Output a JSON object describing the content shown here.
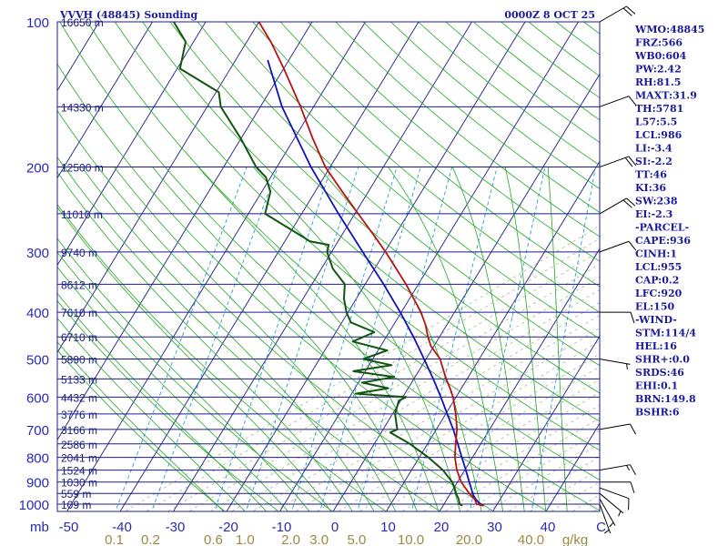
{
  "header": {
    "station": "VVVH (48845) Sounding",
    "time": "0000Z  8 OCT 25"
  },
  "indices": [
    "WMO:48845",
    "FRZ:566",
    "WB0:604",
    "PW:2.42",
    "RH:81.5",
    "MAXT:31.9",
    "TH:5781",
    "L57:5.5",
    "LCL:986",
    "LI:-3.4",
    "SI:-2.2",
    "TT:46",
    "KI:36",
    "SW:238",
    "EI:-2.3",
    "-PARCEL-",
    "CAPE:936",
    "CINH:1",
    "LCL:955",
    "CAP:0.2",
    "LFC:920",
    "EL:150",
    "-WIND-",
    "STM:114/4",
    "HEL:16",
    "SHR+:0.0",
    "SRDS:46",
    "EHI:0.1",
    "BRN:149.8",
    "BSHR:6"
  ],
  "colors": {
    "frame": "#1c1c8c",
    "isobar": "#1c1c8c",
    "isotherm": "#1c1c8c",
    "dry_adiabat": "#22aa22",
    "moist_adiabat": "#22aa22",
    "mixing_ratio": "#22a0d0",
    "temperature": "#bb1111",
    "dewpoint": "#115511",
    "parcel": "#1111bb",
    "wind": "#000000",
    "hatch": "#9a9a70"
  },
  "chart_data": {
    "type": "skew-t",
    "x_unit": "°C",
    "y_unit": "mb",
    "pressure_ticks": [
      {
        "p": 100,
        "label": "100"
      },
      {
        "p": 200,
        "label": "200"
      },
      {
        "p": 300,
        "label": "300"
      },
      {
        "p": 400,
        "label": "400"
      },
      {
        "p": 500,
        "label": "500"
      },
      {
        "p": 600,
        "label": "600"
      },
      {
        "p": 700,
        "label": "700"
      },
      {
        "p": 800,
        "label": "800"
      },
      {
        "p": 900,
        "label": "900"
      },
      {
        "p": 1000,
        "label": "1000"
      }
    ],
    "pressure_unit_label": "mb",
    "temperature_ticks": [
      {
        "t": -50,
        "label": "-50"
      },
      {
        "t": -40,
        "label": "-40"
      },
      {
        "t": -30,
        "label": "-30"
      },
      {
        "t": -20,
        "label": "-20"
      },
      {
        "t": -10,
        "label": "-10"
      },
      {
        "t": 0,
        "label": "0"
      },
      {
        "t": 10,
        "label": "10"
      },
      {
        "t": 20,
        "label": "20"
      },
      {
        "t": 30,
        "label": "30"
      },
      {
        "t": 40,
        "label": "40"
      },
      {
        "t": 50,
        "label": "C"
      }
    ],
    "mixing_ratio_ticks": [
      {
        "w": 0.1,
        "label": "0.1"
      },
      {
        "w": 0.2,
        "label": "0.2"
      },
      {
        "w": 0.6,
        "label": "0.6"
      },
      {
        "w": 1.0,
        "label": "1.0"
      },
      {
        "w": 2.0,
        "label": "2.0"
      },
      {
        "w": 3.0,
        "label": "3.0"
      },
      {
        "w": 5.0,
        "label": "5.0"
      },
      {
        "w": 10.0,
        "label": "10.0"
      },
      {
        "w": 20.0,
        "label": "20.0"
      },
      {
        "w": 40.0,
        "label": "40.0"
      }
    ],
    "mixing_ratio_unit_label": "g/kg",
    "height_levels": [
      {
        "p": 100,
        "label": "16650 m"
      },
      {
        "p": 150,
        "label": "14330 m"
      },
      {
        "p": 200,
        "label": "12500 m"
      },
      {
        "p": 250,
        "label": "11010 m"
      },
      {
        "p": 300,
        "label": "9740 m"
      },
      {
        "p": 350,
        "label": "8612 m"
      },
      {
        "p": 400,
        "label": "7610 m"
      },
      {
        "p": 450,
        "label": "6710 m"
      },
      {
        "p": 500,
        "label": "5890 m"
      },
      {
        "p": 550,
        "label": "5133 m"
      },
      {
        "p": 600,
        "label": "4432 m"
      },
      {
        "p": 650,
        "label": "3776 m"
      },
      {
        "p": 700,
        "label": "3166 m"
      },
      {
        "p": 750,
        "label": "2586 m"
      },
      {
        "p": 800,
        "label": "2041 m"
      },
      {
        "p": 850,
        "label": "1524 m"
      },
      {
        "p": 900,
        "label": "1030 m"
      },
      {
        "p": 950,
        "label": "559 m"
      },
      {
        "p": 1000,
        "label": "109 m"
      }
    ],
    "temperature_profile": [
      [
        1008,
        27.3
      ],
      [
        1000,
        25.8
      ],
      [
        975,
        24.8
      ],
      [
        950,
        23.2
      ],
      [
        925,
        21.8
      ],
      [
        900,
        20.4
      ],
      [
        850,
        18.2
      ],
      [
        800,
        16.4
      ],
      [
        750,
        15.0
      ],
      [
        700,
        13.6
      ],
      [
        650,
        11.6
      ],
      [
        600,
        9.2
      ],
      [
        575,
        7.6
      ],
      [
        550,
        5.8
      ],
      [
        500,
        2.4
      ],
      [
        470,
        -0.8
      ],
      [
        450,
        -2.4
      ],
      [
        425,
        -4.2
      ],
      [
        400,
        -6.5
      ],
      [
        350,
        -12.5
      ],
      [
        300,
        -20.0
      ],
      [
        275,
        -24.5
      ],
      [
        250,
        -29.5
      ],
      [
        225,
        -35.0
      ],
      [
        200,
        -41.0
      ],
      [
        175,
        -46.5
      ],
      [
        150,
        -52.5
      ],
      [
        125,
        -60.0
      ],
      [
        110,
        -65.5
      ],
      [
        100,
        -70.0
      ]
    ],
    "dewpoint_profile": [
      [
        1008,
        23.3
      ],
      [
        1000,
        22.6
      ],
      [
        975,
        21.8
      ],
      [
        950,
        20.7
      ],
      [
        925,
        19.8
      ],
      [
        900,
        18.7
      ],
      [
        850,
        15.6
      ],
      [
        800,
        11.4
      ],
      [
        750,
        6.4
      ],
      [
        710,
        1.4
      ],
      [
        700,
        2.4
      ],
      [
        650,
        0.2
      ],
      [
        610,
        -0.6
      ],
      [
        600,
        0.4
      ],
      [
        590,
        -9.5
      ],
      [
        575,
        -4.0
      ],
      [
        560,
        -9.5
      ],
      [
        545,
        -4.2
      ],
      [
        530,
        -12.5
      ],
      [
        515,
        -6.0
      ],
      [
        500,
        -12.0
      ],
      [
        480,
        -8.5
      ],
      [
        460,
        -16.0
      ],
      [
        440,
        -13.0
      ],
      [
        420,
        -18.5
      ],
      [
        400,
        -20.5
      ],
      [
        375,
        -22.5
      ],
      [
        350,
        -24.0
      ],
      [
        325,
        -28.0
      ],
      [
        300,
        -31.0
      ],
      [
        290,
        -31.5
      ],
      [
        285,
        -35.5
      ],
      [
        280,
        -37.0
      ],
      [
        250,
        -47.0
      ],
      [
        225,
        -48.5
      ],
      [
        210,
        -51.0
      ],
      [
        200,
        -54.0
      ],
      [
        175,
        -60.0
      ],
      [
        150,
        -67.5
      ],
      [
        140,
        -69.5
      ],
      [
        125,
        -79.5
      ],
      [
        110,
        -81.5
      ],
      [
        100,
        -86.0
      ]
    ],
    "parcel_profile": [
      [
        1008,
        27.3
      ],
      [
        1000,
        26.4
      ],
      [
        975,
        25.0
      ],
      [
        955,
        24.0
      ],
      [
        920,
        22.7
      ],
      [
        900,
        21.9
      ],
      [
        850,
        19.9
      ],
      [
        800,
        17.7
      ],
      [
        750,
        15.4
      ],
      [
        700,
        12.9
      ],
      [
        650,
        10.0
      ],
      [
        600,
        6.9
      ],
      [
        550,
        3.4
      ],
      [
        500,
        -0.6
      ],
      [
        450,
        -5.1
      ],
      [
        400,
        -10.4
      ],
      [
        350,
        -16.7
      ],
      [
        300,
        -24.3
      ],
      [
        250,
        -33.2
      ],
      [
        200,
        -43.7
      ],
      [
        150,
        -56.0
      ],
      [
        120,
        -64.0
      ]
    ],
    "wind_barbs": [
      {
        "p": 1000,
        "dir": 160,
        "spd": 5
      },
      {
        "p": 975,
        "dir": 150,
        "spd": 5
      },
      {
        "p": 950,
        "dir": 130,
        "spd": 5
      },
      {
        "p": 925,
        "dir": 110,
        "spd": 10
      },
      {
        "p": 900,
        "dir": 90,
        "spd": 10
      },
      {
        "p": 850,
        "dir": 80,
        "spd": 15
      },
      {
        "p": 700,
        "dir": 80,
        "spd": 10
      },
      {
        "p": 500,
        "dir": 100,
        "spd": 5
      },
      {
        "p": 400,
        "dir": 90,
        "spd": 10
      },
      {
        "p": 300,
        "dir": 70,
        "spd": 10
      },
      {
        "p": 250,
        "dir": 60,
        "spd": 20
      },
      {
        "p": 200,
        "dir": 70,
        "spd": 20
      },
      {
        "p": 150,
        "dir": 70,
        "spd": 10
      },
      {
        "p": 100,
        "dir": 60,
        "spd": 20
      }
    ]
  }
}
